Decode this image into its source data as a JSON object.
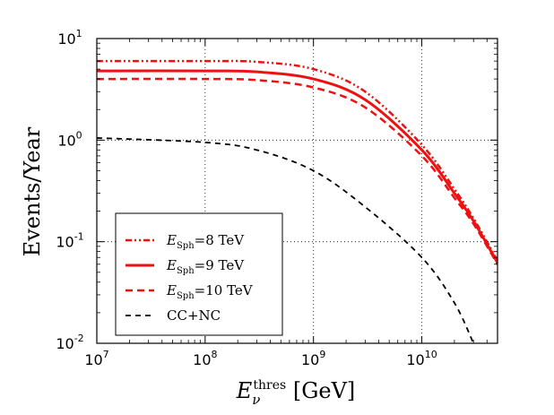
{
  "chart_data": {
    "type": "line",
    "xscale": "log",
    "yscale": "log",
    "xlim": [
      10000000,
      50000000000
    ],
    "ylim": [
      0.01,
      10
    ],
    "xlabel": {
      "main": "E",
      "sub": "ν",
      "sup": "thres",
      "unit": " [GeV]"
    },
    "ylabel": "Events/Year",
    "grid": true,
    "legend_position": "lower-left",
    "x_ticks": [
      {
        "value": 10000000,
        "base": "10",
        "exp": "7"
      },
      {
        "value": 100000000,
        "base": "10",
        "exp": "8"
      },
      {
        "value": 1000000000,
        "base": "10",
        "exp": "9"
      },
      {
        "value": 10000000000,
        "base": "10",
        "exp": "10"
      }
    ],
    "y_ticks": [
      {
        "value": 0.01,
        "base": "10",
        "exp": "-2"
      },
      {
        "value": 0.1,
        "base": "10",
        "exp": "-1"
      },
      {
        "value": 1,
        "base": "10",
        "exp": "0"
      },
      {
        "value": 10,
        "base": "10",
        "exp": "1"
      }
    ],
    "series": [
      {
        "name": "E_Sph=8 TeV",
        "label": {
          "main": "E",
          "sub": "Sph",
          "rest": "=8 TeV"
        },
        "color": "#ee1111",
        "style": "dashdot",
        "points": [
          [
            10000000.0,
            6.0
          ],
          [
            100000000.0,
            6.0
          ],
          [
            300000000.0,
            5.9
          ],
          [
            1000000000.0,
            5.0
          ],
          [
            3000000000.0,
            3.0
          ],
          [
            10000000000.0,
            0.9
          ],
          [
            20000000000.0,
            0.33
          ],
          [
            30000000000.0,
            0.17
          ],
          [
            50000000000.0,
            0.065
          ]
        ]
      },
      {
        "name": "E_Sph=9 TeV",
        "label": {
          "main": "E",
          "sub": "Sph",
          "rest": "=9 TeV"
        },
        "color": "#ee1111",
        "style": "solid",
        "points": [
          [
            10000000.0,
            4.8
          ],
          [
            100000000.0,
            4.8
          ],
          [
            300000000.0,
            4.7
          ],
          [
            1000000000.0,
            4.0
          ],
          [
            3000000000.0,
            2.5
          ],
          [
            10000000000.0,
            0.8
          ],
          [
            20000000000.0,
            0.3
          ],
          [
            30000000000.0,
            0.16
          ],
          [
            50000000000.0,
            0.062
          ]
        ]
      },
      {
        "name": "E_Sph=10 TeV",
        "label": {
          "main": "E",
          "sub": "Sph",
          "rest": "=10 TeV"
        },
        "color": "#ee1111",
        "style": "dashed",
        "points": [
          [
            10000000.0,
            4.0
          ],
          [
            100000000.0,
            4.0
          ],
          [
            300000000.0,
            3.9
          ],
          [
            1000000000.0,
            3.3
          ],
          [
            3000000000.0,
            2.1
          ],
          [
            10000000000.0,
            0.7
          ],
          [
            20000000000.0,
            0.27
          ],
          [
            30000000000.0,
            0.15
          ],
          [
            50000000000.0,
            0.06
          ]
        ]
      },
      {
        "name": "CC+NC",
        "label": {
          "main": "",
          "sub": "",
          "rest": "CC+NC"
        },
        "color": "#000000",
        "style": "dashed-black",
        "points": [
          [
            10000000.0,
            1.05
          ],
          [
            100000000.0,
            0.95
          ],
          [
            300000000.0,
            0.8
          ],
          [
            1000000000.0,
            0.5
          ],
          [
            3000000000.0,
            0.22
          ],
          [
            10000000000.0,
            0.07
          ],
          [
            20000000000.0,
            0.025
          ],
          [
            30000000000.0,
            0.01
          ]
        ]
      }
    ]
  }
}
